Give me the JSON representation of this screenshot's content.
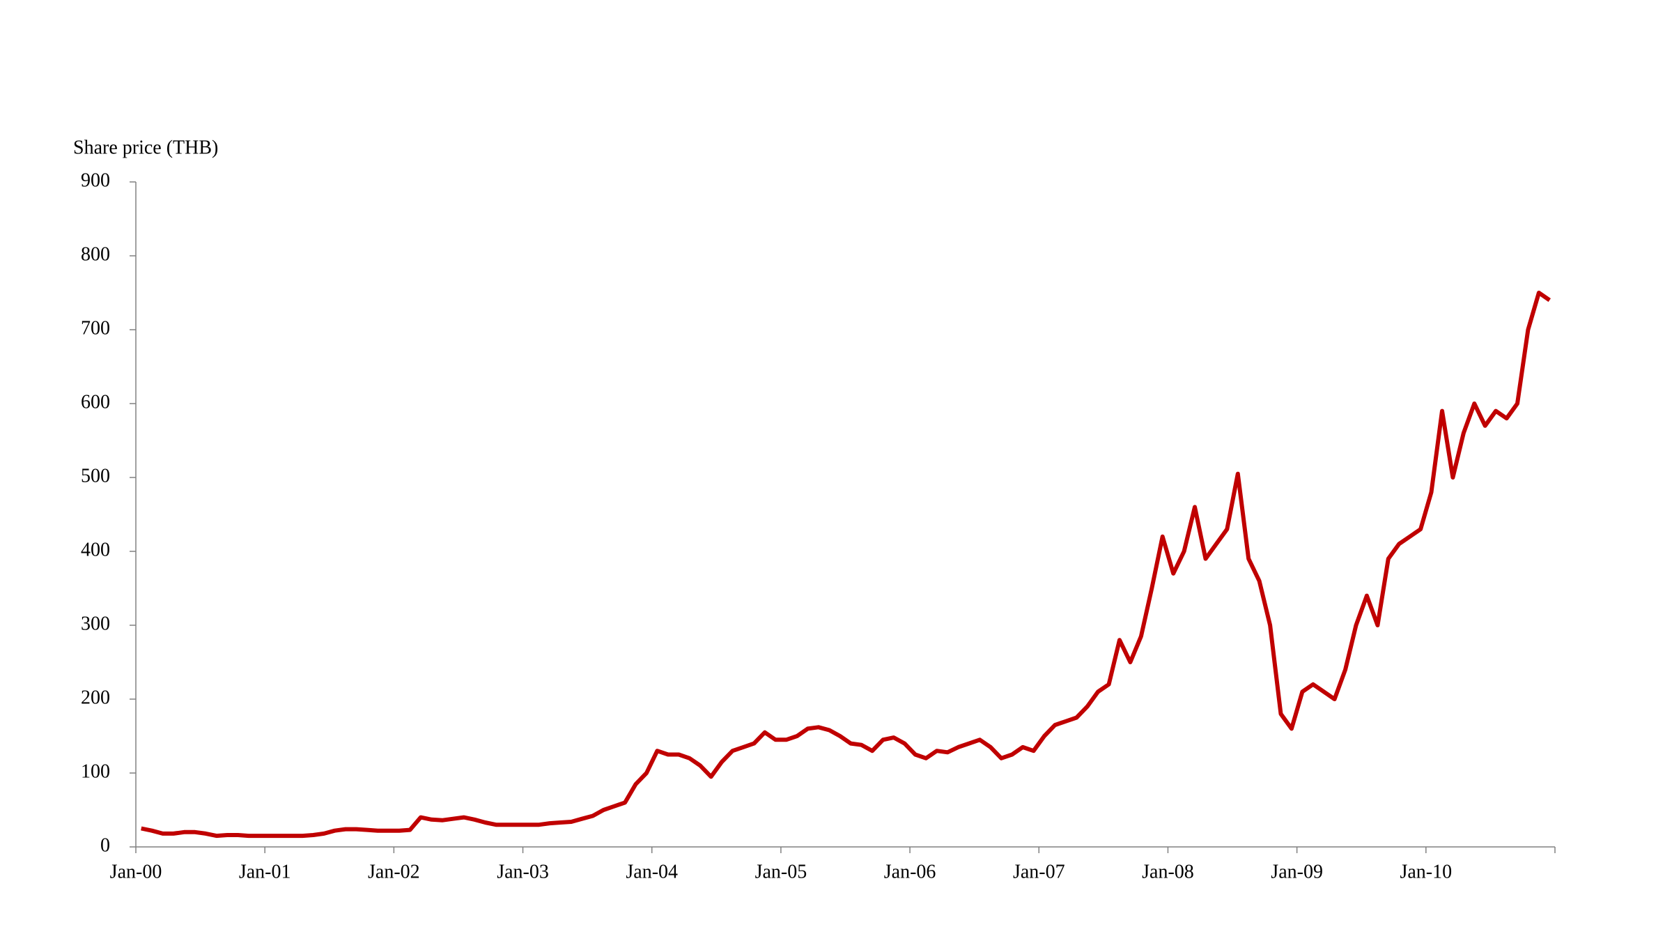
{
  "chart_data": {
    "type": "line",
    "y_label": "Share price (THB)",
    "categories": [
      "Jan-00",
      null,
      null,
      null,
      null,
      null,
      null,
      null,
      null,
      null,
      null,
      null,
      "Jan-01",
      null,
      null,
      null,
      null,
      null,
      null,
      null,
      null,
      null,
      null,
      null,
      "Jan-02",
      null,
      null,
      null,
      null,
      null,
      null,
      null,
      null,
      null,
      null,
      null,
      "Jan-03",
      null,
      null,
      null,
      null,
      null,
      null,
      null,
      null,
      null,
      null,
      null,
      "Jan-04",
      null,
      null,
      null,
      null,
      null,
      null,
      null,
      null,
      null,
      null,
      null,
      "Jan-05",
      null,
      null,
      null,
      null,
      null,
      null,
      null,
      null,
      null,
      null,
      null,
      "Jan-06",
      null,
      null,
      null,
      null,
      null,
      null,
      null,
      null,
      null,
      null,
      null,
      "Jan-07",
      null,
      null,
      null,
      null,
      null,
      null,
      null,
      null,
      null,
      null,
      null,
      "Jan-08",
      null,
      null,
      null,
      null,
      null,
      null,
      null,
      null,
      null,
      null,
      null,
      "Jan-09",
      null,
      null,
      null,
      null,
      null,
      null,
      null,
      null,
      null,
      null,
      null,
      "Jan-10",
      null,
      null,
      null,
      null,
      null,
      null,
      null,
      null,
      null,
      null,
      null
    ],
    "series": [
      {
        "name": "Share price",
        "color": "#c00000",
        "values": [
          25,
          22,
          18,
          18,
          20,
          20,
          18,
          15,
          16,
          16,
          15,
          15,
          15,
          15,
          15,
          15,
          16,
          18,
          22,
          24,
          24,
          23,
          22,
          22,
          22,
          23,
          40,
          37,
          36,
          38,
          40,
          37,
          33,
          30,
          30,
          30,
          30,
          30,
          32,
          33,
          34,
          38,
          42,
          50,
          55,
          60,
          85,
          100,
          130,
          125,
          125,
          120,
          110,
          95,
          115,
          130,
          135,
          140,
          155,
          145,
          145,
          150,
          160,
          162,
          158,
          150,
          140,
          138,
          130,
          145,
          148,
          140,
          125,
          120,
          130,
          128,
          135,
          140,
          145,
          135,
          120,
          125,
          135,
          130,
          150,
          165,
          170,
          175,
          190,
          210,
          220,
          280,
          250,
          285,
          350,
          420,
          370,
          400,
          460,
          390,
          410,
          430,
          505,
          390,
          360,
          300,
          180,
          160,
          210,
          220,
          210,
          200,
          240,
          300,
          340,
          300,
          390,
          410,
          420,
          430,
          480,
          590,
          500,
          560,
          600,
          570,
          590,
          580,
          600,
          700,
          750,
          740
        ]
      }
    ],
    "ylim": [
      0,
      900
    ],
    "yticks": [
      0,
      100,
      200,
      300,
      400,
      500,
      600,
      700,
      800,
      900
    ]
  }
}
